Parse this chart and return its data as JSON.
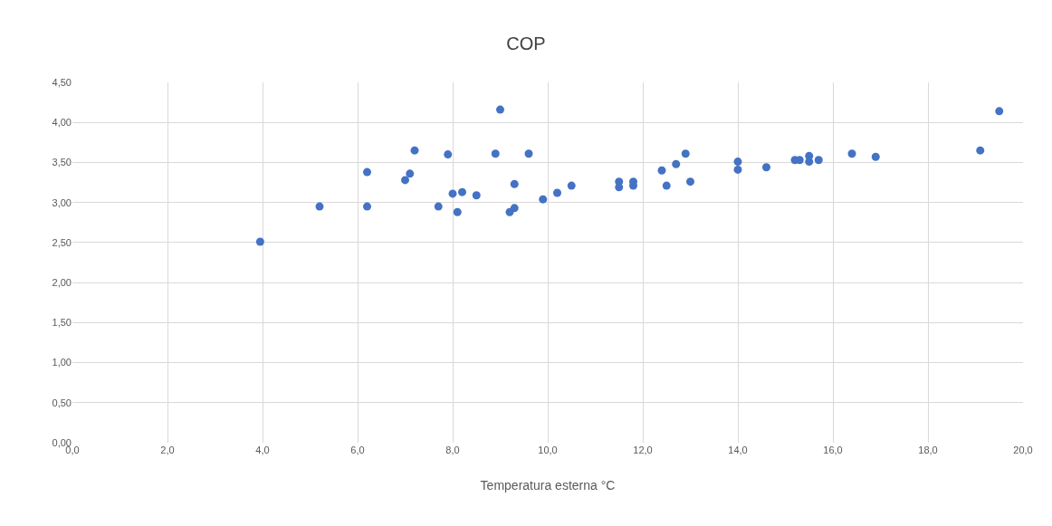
{
  "chart_data": {
    "type": "scatter",
    "title": "COP",
    "xlabel": "Temperatura esterna °C",
    "x": [
      3.95,
      5.2,
      6.2,
      6.2,
      7.0,
      7.1,
      7.2,
      7.7,
      7.9,
      8.0,
      8.1,
      8.2,
      8.5,
      8.9,
      9.0,
      9.2,
      9.3,
      9.3,
      9.6,
      9.9,
      10.2,
      10.5,
      11.5,
      11.5,
      11.8,
      11.8,
      12.4,
      12.5,
      12.7,
      12.9,
      13.0,
      14.0,
      14.0,
      14.6,
      15.2,
      15.3,
      15.5,
      15.5,
      15.7,
      16.4,
      16.9,
      19.1,
      19.5
    ],
    "series": [
      {
        "color": "#4472c4",
        "values": [
          2.51,
          2.95,
          3.38,
          2.95,
          3.28,
          3.36,
          3.65,
          2.95,
          3.6,
          3.11,
          2.88,
          3.13,
          3.09,
          3.61,
          4.16,
          2.88,
          3.23,
          2.93,
          3.61,
          3.04,
          3.12,
          3.21,
          3.26,
          3.19,
          3.21,
          3.26,
          3.4,
          3.21,
          3.48,
          3.61,
          3.26,
          3.51,
          3.41,
          3.44,
          3.53,
          3.53,
          3.51,
          3.58,
          3.53,
          3.61,
          3.57,
          3.65,
          4.14
        ]
      }
    ],
    "xlim": [
      0,
      20
    ],
    "ylim": [
      0,
      4.5
    ],
    "xticks": [
      {
        "value": 0,
        "label": "0,0"
      },
      {
        "value": 2,
        "label": "2,0"
      },
      {
        "value": 4,
        "label": "4,0"
      },
      {
        "value": 6,
        "label": "6,0"
      },
      {
        "value": 8,
        "label": "8,0"
      },
      {
        "value": 10,
        "label": "10,0"
      },
      {
        "value": 12,
        "label": "12,0"
      },
      {
        "value": 14,
        "label": "14,0"
      },
      {
        "value": 16,
        "label": "16,0"
      },
      {
        "value": 18,
        "label": "18,0"
      },
      {
        "value": 20,
        "label": "20,0"
      }
    ],
    "yticks": [
      {
        "value": 0,
        "label": "0,00"
      },
      {
        "value": 0.5,
        "label": "0,50"
      },
      {
        "value": 1,
        "label": "1,00"
      },
      {
        "value": 1.5,
        "label": "1,50"
      },
      {
        "value": 2,
        "label": "2,00"
      },
      {
        "value": 2.5,
        "label": "2,50"
      },
      {
        "value": 3,
        "label": "3,00"
      },
      {
        "value": 3.5,
        "label": "3,50"
      },
      {
        "value": 4,
        "label": "4,00"
      },
      {
        "value": 4.5,
        "label": "4,50"
      }
    ],
    "grid": true,
    "marker": "circle"
  }
}
